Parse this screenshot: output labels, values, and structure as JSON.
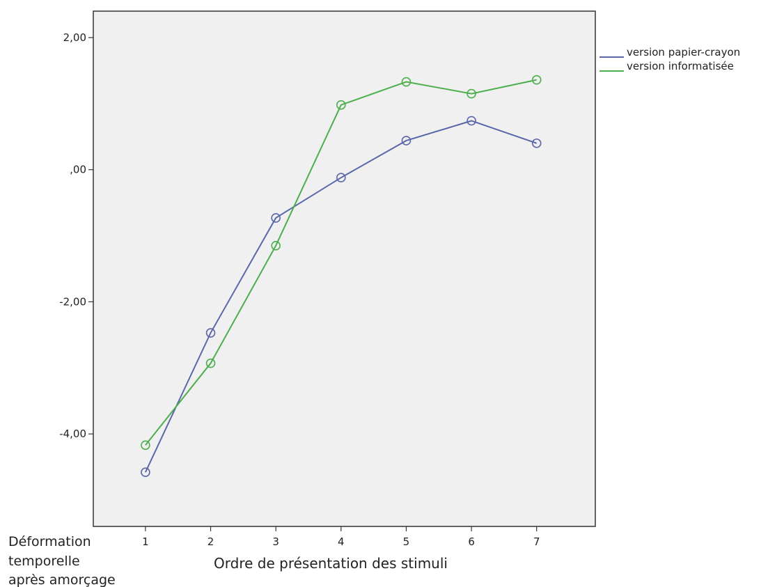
{
  "chart_data": {
    "type": "line",
    "title": "",
    "xlabel": "Ordre de présentation des stimuli",
    "ylabel_lines": [
      "Déformation",
      "temporelle",
      "après amorçage"
    ],
    "x": [
      1,
      2,
      3,
      4,
      5,
      6,
      7
    ],
    "x_tick_labels": [
      "1",
      "2",
      "3",
      "4",
      "5",
      "6",
      "7"
    ],
    "xlim": [
      0.2,
      7.9
    ],
    "ylim": [
      -5.4,
      2.4
    ],
    "y_ticks": [
      2,
      0,
      -2,
      -4
    ],
    "y_tick_labels": [
      "2,00",
      ",00",
      "-2,00",
      "-4,00"
    ],
    "grid": false,
    "legend_position": "right",
    "plot_background": "#f0f0f0",
    "series": [
      {
        "name": "version papier-crayon",
        "color": "#5a67a8",
        "values": [
          -4.58,
          -2.47,
          -0.73,
          -0.12,
          0.44,
          0.74,
          0.4
        ]
      },
      {
        "name": "version informatisée",
        "color": "#4cae4c",
        "values": [
          -4.17,
          -2.93,
          -1.15,
          0.98,
          1.33,
          1.15,
          1.36
        ]
      }
    ]
  }
}
